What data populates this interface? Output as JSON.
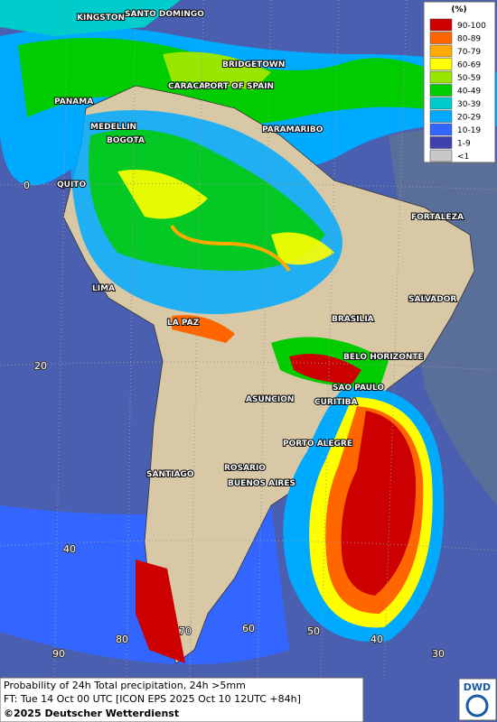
{
  "legend": {
    "title": "(%)",
    "items": [
      {
        "label": "90-100",
        "color": "#cc0000"
      },
      {
        "label": "80-89",
        "color": "#ff6600"
      },
      {
        "label": "70-79",
        "color": "#ffaa00"
      },
      {
        "label": "60-69",
        "color": "#ffff00"
      },
      {
        "label": "50-59",
        "color": "#99e600"
      },
      {
        "label": "40-49",
        "color": "#00cc00"
      },
      {
        "label": "30-39",
        "color": "#00cccc"
      },
      {
        "label": "20-29",
        "color": "#00aaff"
      },
      {
        "label": "10-19",
        "color": "#3366ff"
      },
      {
        "label": "1-9",
        "color": "#4040b0"
      },
      {
        "label": "<1",
        "color": "#c8c8c8"
      }
    ]
  },
  "cities": [
    "KINGSTON",
    "SANTO DOMINGO",
    "BRIDGETOWN",
    "CARACAS",
    "PORT OF SPAIN",
    "PANAMA",
    "MEDELLIN",
    "BOGOTA",
    "PARAMARIBO",
    "QUITO",
    "FORTALEZA",
    "LIMA",
    "SALVADOR",
    "BRASILIA",
    "LA PAZ",
    "BELO HORIZONTE",
    "SAO PAULO",
    "CURITIBA",
    "ASUNCION",
    "PORTO ALEGRE",
    "ROSARIO",
    "BUENOS AIRES",
    "SANTIAGO"
  ],
  "grid_labels": {
    "lat": [
      0,
      20,
      40
    ],
    "lon": [
      90,
      80,
      70,
      60,
      50,
      40,
      30
    ]
  },
  "footer": {
    "line1": "Probability of 24h Total precipitation, 24h >5mm",
    "line2": "FT: Tue 14 Oct 00 UTC [ICON EPS 2025 Oct 10 12UTC +84h]",
    "copyright": "©2025 Deutscher Wetterdienst"
  },
  "logo": "DWD"
}
